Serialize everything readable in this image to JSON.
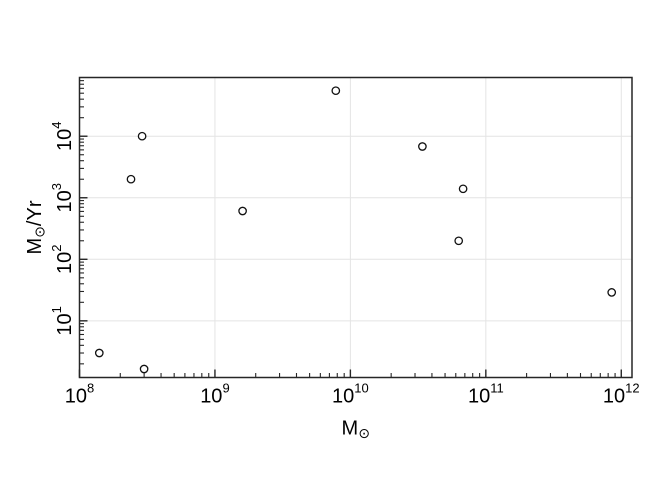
{
  "chart_data": {
    "type": "scatter",
    "title": "",
    "x_scale": "log",
    "y_scale": "log",
    "xlabel": {
      "main": "M",
      "sub": "⊙",
      "suffix": ""
    },
    "ylabel": {
      "main": "M",
      "sub": "⊙",
      "suffix": "/Yr"
    },
    "xlim": [
      100000000.0,
      1200000000000.0
    ],
    "ylim": [
      1.2,
      90000.0
    ],
    "grid": true,
    "legend": null,
    "marker": "open-circle",
    "x_ticks": [
      {
        "value": 100000000.0,
        "label_base": "10",
        "label_exp": "8"
      },
      {
        "value": 1000000000.0,
        "label_base": "10",
        "label_exp": "9"
      },
      {
        "value": 10000000000.0,
        "label_base": "10",
        "label_exp": "10"
      },
      {
        "value": 100000000000.0,
        "label_base": "10",
        "label_exp": "11"
      },
      {
        "value": 1000000000000.0,
        "label_base": "10",
        "label_exp": "12"
      }
    ],
    "y_ticks": [
      {
        "value": 10,
        "label_base": "10",
        "label_exp": "1"
      },
      {
        "value": 100,
        "label_base": "10",
        "label_exp": "2"
      },
      {
        "value": 1000,
        "label_base": "10",
        "label_exp": "3"
      },
      {
        "value": 10000,
        "label_base": "10",
        "label_exp": "4"
      }
    ],
    "points": [
      {
        "x": 140000000.0,
        "y": 3.0
      },
      {
        "x": 240000000.0,
        "y": 2000
      },
      {
        "x": 290000000.0,
        "y": 10000
      },
      {
        "x": 300000000.0,
        "y": 1.65
      },
      {
        "x": 1600000000.0,
        "y": 610
      },
      {
        "x": 7800000000.0,
        "y": 55000
      },
      {
        "x": 34000000000.0,
        "y": 6800
      },
      {
        "x": 63000000000.0,
        "y": 200
      },
      {
        "x": 68000000000.0,
        "y": 1400
      },
      {
        "x": 850000000000.0,
        "y": 29
      }
    ]
  },
  "colors": {
    "background": "#ffffff",
    "axis": "#262626",
    "grid": "#e4e4e4",
    "text": "#000000",
    "marker_stroke": "#111111",
    "marker_fill": "#ffffff"
  }
}
